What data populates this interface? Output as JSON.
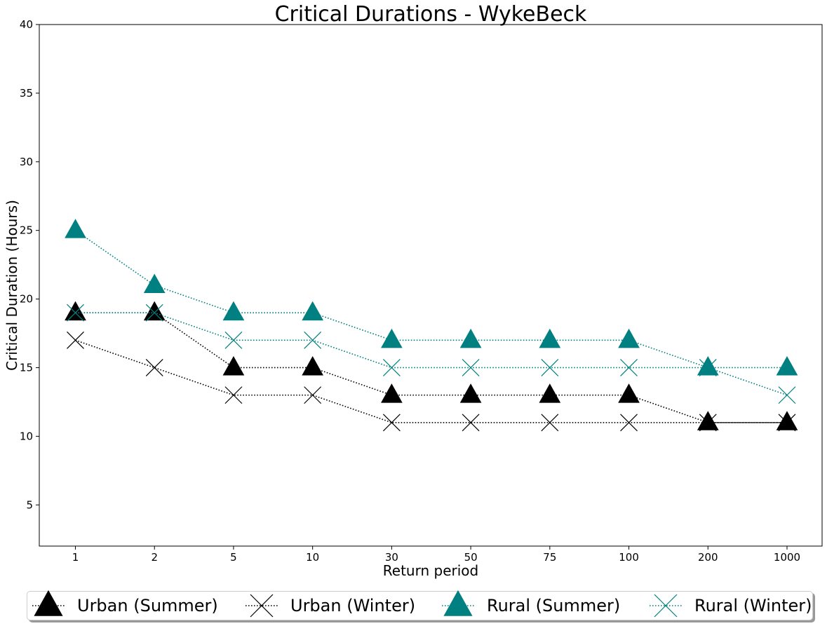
{
  "chart_data": {
    "type": "line",
    "title": "Critical Durations - WykeBeck",
    "xlabel": "Return period",
    "ylabel": "Critical Duration (Hours)",
    "categories": [
      "1",
      "2",
      "5",
      "10",
      "30",
      "50",
      "75",
      "100",
      "200",
      "1000"
    ],
    "ylim": [
      2,
      40
    ],
    "yticks": [
      5,
      10,
      15,
      20,
      25,
      30,
      35,
      40
    ],
    "grid": false,
    "legend_position": "bottom-center",
    "series": [
      {
        "name": "Urban (Summer)",
        "values": [
          19,
          19,
          15,
          15,
          13,
          13,
          13,
          13,
          11,
          11
        ],
        "color": "#000000",
        "marker": "triangle",
        "linestyle": "dotted"
      },
      {
        "name": "Urban (Winter)",
        "values": [
          17,
          15,
          13,
          13,
          11,
          11,
          11,
          11,
          11,
          11
        ],
        "color": "#000000",
        "marker": "x",
        "linestyle": "dotted"
      },
      {
        "name": "Rural (Summer)",
        "values": [
          25,
          21,
          19,
          19,
          17,
          17,
          17,
          17,
          15,
          15
        ],
        "color": "#008080",
        "marker": "triangle",
        "linestyle": "dotted"
      },
      {
        "name": "Rural (Winter)",
        "values": [
          19,
          19,
          17,
          17,
          15,
          15,
          15,
          15,
          15,
          13
        ],
        "color": "#008080",
        "marker": "x",
        "linestyle": "dotted"
      }
    ]
  }
}
